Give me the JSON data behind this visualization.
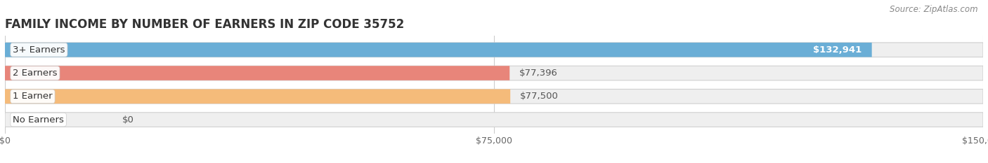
{
  "title": "FAMILY INCOME BY NUMBER OF EARNERS IN ZIP CODE 35752",
  "source": "Source: ZipAtlas.com",
  "categories": [
    "No Earners",
    "1 Earner",
    "2 Earners",
    "3+ Earners"
  ],
  "values": [
    0,
    77500,
    77396,
    132941
  ],
  "bar_colors": [
    "#f4a0b5",
    "#f5bb7a",
    "#e8857a",
    "#6aaed6"
  ],
  "bar_bg_color": "#efefef",
  "xlim": [
    0,
    150000
  ],
  "xticks": [
    0,
    75000,
    150000
  ],
  "xtick_labels": [
    "$0",
    "$75,000",
    "$150,000"
  ],
  "value_labels": [
    "$0",
    "$77,500",
    "$77,396",
    "$132,941"
  ],
  "bg_color": "#ffffff",
  "bar_height": 0.62,
  "title_fontsize": 12,
  "label_fontsize": 9.5,
  "tick_fontsize": 9,
  "source_fontsize": 8.5
}
